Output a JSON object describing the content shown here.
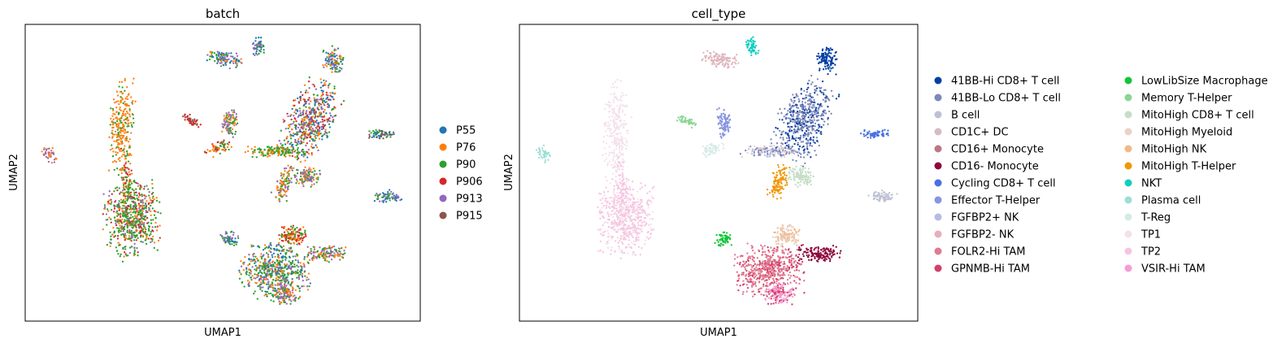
{
  "chart_data": [
    {
      "type": "scatter",
      "title": "batch",
      "xlabel": "UMAP1",
      "ylabel": "UMAP2",
      "grid": false,
      "legend_position": "right",
      "legend": [
        {
          "label": "P55",
          "color": "#1f77b4"
        },
        {
          "label": "P76",
          "color": "#ff7f0e"
        },
        {
          "label": "P90",
          "color": "#2ca02c"
        },
        {
          "label": "P906",
          "color": "#d62728"
        },
        {
          "label": "P913",
          "color": "#9467bd"
        },
        {
          "label": "P915",
          "color": "#8c564b"
        }
      ]
    },
    {
      "type": "scatter",
      "title": "cell_type",
      "xlabel": "UMAP1",
      "ylabel": "UMAP2",
      "grid": false,
      "legend_position": "right",
      "legend_columns": 2,
      "legend": [
        {
          "label": "41BB-Hi CD8+ T cell",
          "color": "#023fa5"
        },
        {
          "label": "41BB-Lo CD8+ T cell",
          "color": "#7d87b9"
        },
        {
          "label": "B cell",
          "color": "#bec1d4"
        },
        {
          "label": "CD1C+ DC",
          "color": "#d6bcc0"
        },
        {
          "label": "CD16+ Monocyte",
          "color": "#bb7784"
        },
        {
          "label": "CD16- Monocyte",
          "color": "#8e063b"
        },
        {
          "label": "Cycling CD8+ T cell",
          "color": "#4a6fe3"
        },
        {
          "label": "Effector T-Helper",
          "color": "#8595e1"
        },
        {
          "label": "FGFBP2+ NK",
          "color": "#b5bbe3"
        },
        {
          "label": "FGFBP2- NK",
          "color": "#e6afb9"
        },
        {
          "label": "FOLR2-Hi TAM",
          "color": "#e07b91"
        },
        {
          "label": "GPNMB-Hi TAM",
          "color": "#d33f6a"
        },
        {
          "label": "LowLibSize Macrophage",
          "color": "#11c638"
        },
        {
          "label": "Memory T-Helper",
          "color": "#8dd593"
        },
        {
          "label": "MitoHigh CD8+ T cell",
          "color": "#c6dec7"
        },
        {
          "label": "MitoHigh Myeloid",
          "color": "#ead3c6"
        },
        {
          "label": "MitoHigh NK",
          "color": "#f0b98d"
        },
        {
          "label": "MitoHigh T-Helper",
          "color": "#ef9708"
        },
        {
          "label": "NKT",
          "color": "#0fcfc0"
        },
        {
          "label": "Plasma cell",
          "color": "#9cded6"
        },
        {
          "label": "T-Reg",
          "color": "#d5eae7"
        },
        {
          "label": "TP1",
          "color": "#f3e1eb"
        },
        {
          "label": "TP2",
          "color": "#f6c4e1"
        },
        {
          "label": "VSIR-Hi TAM",
          "color": "#f79cd4"
        }
      ]
    }
  ]
}
